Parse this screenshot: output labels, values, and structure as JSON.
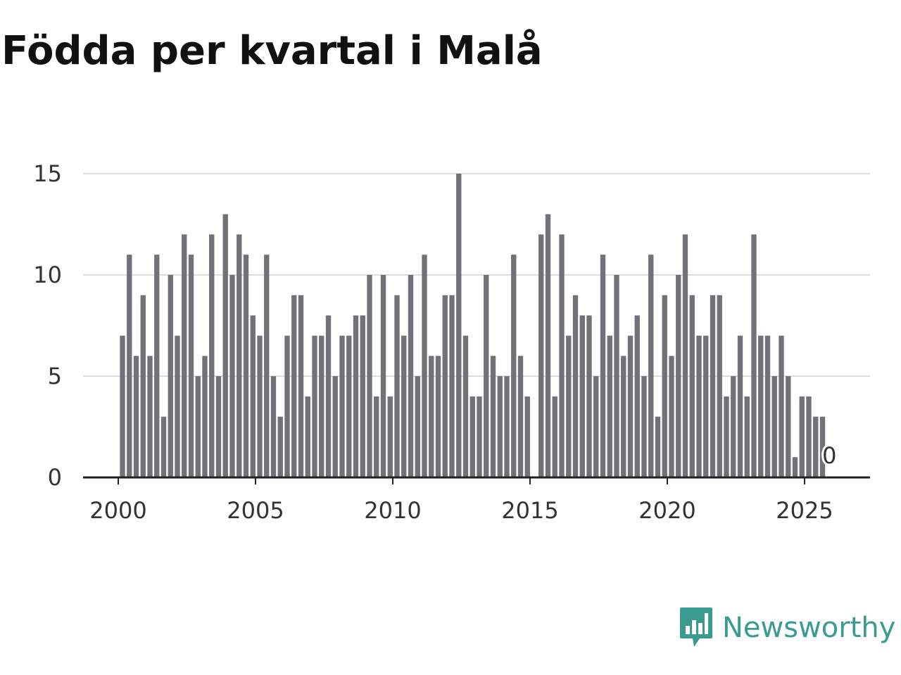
{
  "chart_data": {
    "type": "bar",
    "title": "Födda per kvartal i Malå",
    "xlabel": "",
    "ylabel": "",
    "ylim": [
      0,
      15
    ],
    "xlim": [
      1999.25,
      2027.25
    ],
    "yticks": [
      0,
      5,
      10,
      15
    ],
    "xticks": [
      2000,
      2005,
      2010,
      2015,
      2020,
      2025
    ],
    "grid": true,
    "start_year": 2000,
    "quarter_step": 0.25,
    "values": [
      7,
      11,
      6,
      9,
      6,
      11,
      3,
      10,
      7,
      12,
      11,
      5,
      6,
      12,
      5,
      13,
      10,
      12,
      11,
      8,
      7,
      11,
      5,
      3,
      7,
      9,
      9,
      4,
      7,
      7,
      8,
      5,
      7,
      7,
      8,
      8,
      10,
      4,
      10,
      4,
      9,
      7,
      10,
      5,
      11,
      6,
      6,
      9,
      9,
      15,
      7,
      4,
      4,
      10,
      6,
      5,
      5,
      11,
      6,
      4,
      0,
      12,
      13,
      4,
      12,
      7,
      9,
      8,
      8,
      5,
      11,
      7,
      10,
      6,
      7,
      8,
      5,
      11,
      3,
      9,
      6,
      10,
      12,
      9,
      7,
      7,
      9,
      9,
      4,
      5,
      7,
      4,
      12,
      7,
      7,
      5,
      7,
      5,
      1,
      4,
      4,
      3,
      3,
      0
    ],
    "last_value_label": "0",
    "colors": {
      "bar": "#727177",
      "grid": "#dddddd",
      "axis": "#222222"
    }
  },
  "brand": {
    "name": "Newsworthy",
    "color": "#3a9b90"
  }
}
